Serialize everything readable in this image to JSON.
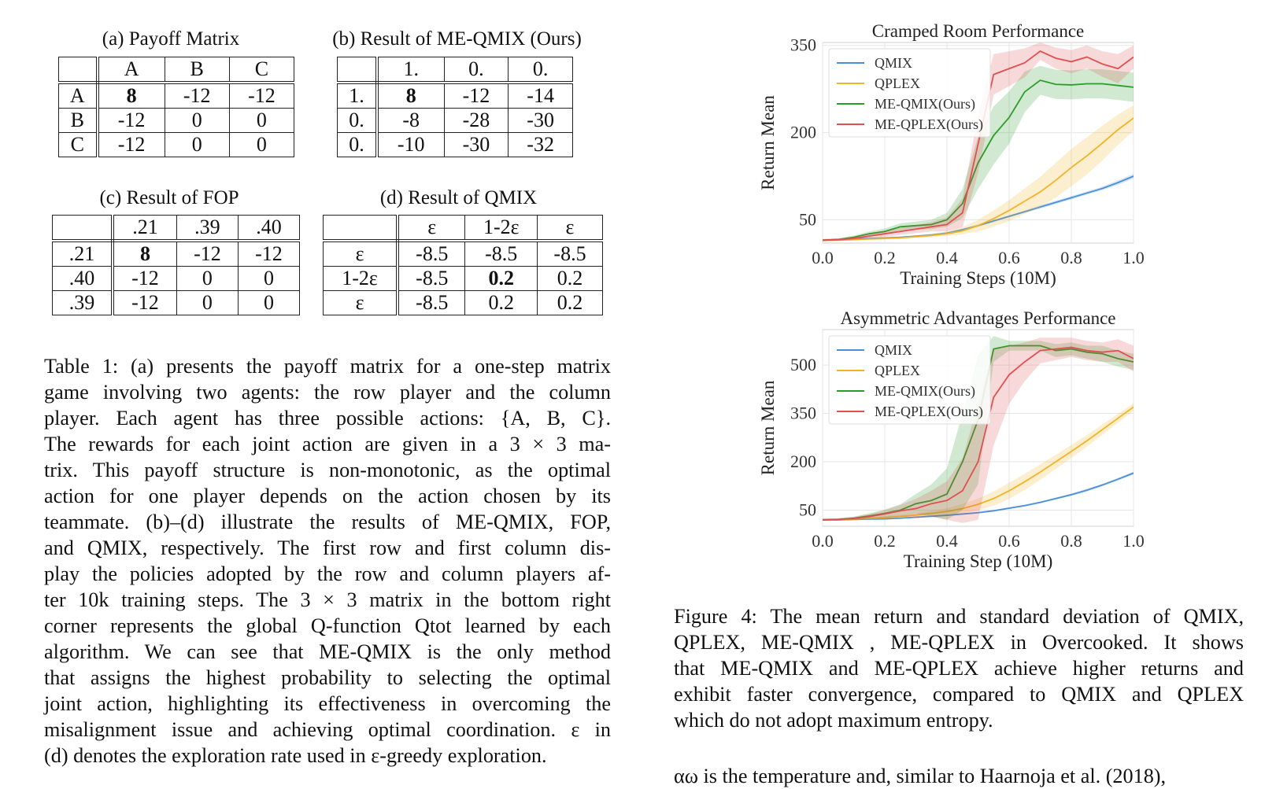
{
  "tables": {
    "a": {
      "title": "(a) Payoff Matrix",
      "cols": [
        "A",
        "B",
        "C"
      ],
      "rows": [
        {
          "h": "A",
          "v": [
            "8",
            "-12",
            "-12"
          ]
        },
        {
          "h": "B",
          "v": [
            "-12",
            "0",
            "0"
          ]
        },
        {
          "h": "C",
          "v": [
            "-12",
            "0",
            "0"
          ]
        }
      ]
    },
    "b": {
      "title": "(b) Result of ME-QMIX (Ours)",
      "cols": [
        "1.",
        "0.",
        "0."
      ],
      "rows": [
        {
          "h": "1.",
          "v": [
            "8",
            "-12",
            "-14"
          ]
        },
        {
          "h": "0.",
          "v": [
            "-8",
            "-28",
            "-30"
          ]
        },
        {
          "h": "0.",
          "v": [
            "-10",
            "-30",
            "-32"
          ]
        }
      ]
    },
    "c": {
      "title": "(c) Result of FOP",
      "cols": [
        ".21",
        ".39",
        ".40"
      ],
      "rows": [
        {
          "h": ".21",
          "v": [
            "8",
            "-12",
            "-12"
          ]
        },
        {
          "h": ".40",
          "v": [
            "-12",
            "0",
            "0"
          ]
        },
        {
          "h": ".39",
          "v": [
            "-12",
            "0",
            "0"
          ]
        }
      ]
    },
    "d": {
      "title": "(d) Result of QMIX",
      "cols": [
        "ε",
        "1-2ε",
        "ε"
      ],
      "rows": [
        {
          "h": "ε",
          "v": [
            "-8.5",
            "-8.5",
            "-8.5"
          ]
        },
        {
          "h": "1-2ε",
          "v": [
            "-8.5",
            "0.2",
            "0.2"
          ]
        },
        {
          "h": "ε",
          "v": [
            "-8.5",
            "0.2",
            "0.2"
          ]
        }
      ]
    }
  },
  "table_caption": [
    "Table 1: (a) presents the payoff matrix for a one-step matrix",
    "game involving two agents: the row player and the column",
    "player. Each agent has three possible actions: {A, B, C}.",
    "The rewards for each joint action are given in a 3 × 3 ma-",
    "trix. This payoff structure is non-monotonic, as the optimal",
    "action for one player depends on the action chosen by its",
    "teammate. (b)–(d) illustrate the results of ME-QMIX, FOP,",
    "and QMIX, respectively. The first row and first column dis-",
    "play the policies adopted by the row and column players af-",
    "ter 10k training steps. The 3 × 3 matrix in the bottom right",
    "corner represents the global Q-function Qtot learned by each",
    "algorithm. We can see that ME-QMIX is the only method",
    "that assigns the highest probability to selecting the optimal",
    "joint action, highlighting its effectiveness in overcoming the",
    "misalignment issue and achieving optimal coordination. ε in",
    "(d) denotes the exploration rate used in ε-greedy exploration."
  ],
  "figure_caption": [
    "Figure 4: The mean return and standard deviation of QMIX,",
    "QPLEX, ME-QMIX , ME-QPLEX in Overcooked. It shows",
    "that ME-QMIX and ME-QPLEX achieve higher returns and",
    "exhibit faster convergence, compared to QMIX and QPLEX",
    "which do not adopt maximum entropy."
  ],
  "body_text": "αω is the temperature and, similar to Haarnoja et al. (2018),",
  "colors": {
    "QMIX": "#4a90d9",
    "QPLEX": "#f0b429",
    "ME-QMIX(Ours)": "#2a9d2a",
    "ME-QPLEX(Ours)": "#e05050"
  },
  "chart_data": [
    {
      "type": "line",
      "title": "Cramped Room Performance",
      "xlabel": "Training Steps (10M)",
      "ylabel": "Return Mean",
      "xlim": [
        0,
        1.0
      ],
      "ylim": [
        10,
        355
      ],
      "xticks": [
        "0.0",
        "0.2",
        "0.4",
        "0.6",
        "0.8",
        "1.0"
      ],
      "xtick_values": [
        0,
        0.2,
        0.4,
        0.6,
        0.8,
        1.0
      ],
      "yticks": [
        "50",
        "200",
        "350"
      ],
      "ytick_values": [
        50,
        200,
        350
      ],
      "legend": "top-left",
      "grid": true,
      "x": [
        0,
        0.05,
        0.1,
        0.15,
        0.2,
        0.25,
        0.3,
        0.35,
        0.4,
        0.45,
        0.5,
        0.55,
        0.6,
        0.65,
        0.7,
        0.75,
        0.8,
        0.85,
        0.9,
        0.95,
        1.0
      ],
      "series": [
        {
          "name": "QMIX",
          "values": [
            15,
            16,
            17,
            18,
            19,
            20,
            22,
            24,
            27,
            33,
            40,
            48,
            56,
            64,
            72,
            80,
            88,
            96,
            104,
            114,
            125
          ],
          "std": [
            1,
            1,
            1,
            1,
            1,
            1,
            1,
            1,
            2,
            2,
            2,
            2,
            2,
            2,
            3,
            3,
            3,
            3,
            3,
            4,
            4
          ]
        },
        {
          "name": "QPLEX",
          "values": [
            15,
            15,
            16,
            17,
            18,
            19,
            21,
            23,
            26,
            31,
            40,
            52,
            66,
            82,
            98,
            118,
            140,
            160,
            182,
            205,
            225
          ],
          "std": [
            1,
            1,
            1,
            1,
            2,
            2,
            2,
            3,
            4,
            6,
            10,
            14,
            18,
            22,
            26,
            30,
            32,
            32,
            30,
            26,
            22
          ]
        },
        {
          "name": "ME-QMIX(Ours)",
          "values": [
            15,
            16,
            20,
            26,
            30,
            38,
            40,
            42,
            50,
            78,
            148,
            195,
            226,
            270,
            290,
            283,
            282,
            284,
            284,
            281,
            278
          ],
          "std": [
            2,
            2,
            3,
            4,
            5,
            6,
            7,
            8,
            12,
            25,
            45,
            50,
            45,
            35,
            25,
            25,
            25,
            25,
            25,
            25,
            25
          ]
        },
        {
          "name": "ME-QPLEX(Ours)",
          "values": [
            15,
            16,
            18,
            22,
            26,
            30,
            34,
            38,
            42,
            62,
            180,
            300,
            310,
            320,
            340,
            328,
            322,
            330,
            318,
            310,
            330
          ],
          "std": [
            2,
            2,
            3,
            4,
            5,
            6,
            7,
            8,
            12,
            25,
            50,
            35,
            30,
            25,
            15,
            18,
            20,
            20,
            22,
            25,
            20
          ]
        }
      ]
    },
    {
      "type": "line",
      "title": "Asymmetric Advantages Performance",
      "xlabel": "Training Step (10M)",
      "ylabel": "Return Mean",
      "xlim": [
        0,
        1.0
      ],
      "ylim": [
        0,
        610
      ],
      "xticks": [
        "0.0",
        "0.2",
        "0.4",
        "0.6",
        "0.8",
        "1.0"
      ],
      "xtick_values": [
        0,
        0.2,
        0.4,
        0.6,
        0.8,
        1.0
      ],
      "yticks": [
        "50",
        "200",
        "350",
        "500"
      ],
      "ytick_values": [
        50,
        200,
        350,
        500
      ],
      "legend": "top-left",
      "grid": true,
      "x": [
        0,
        0.05,
        0.1,
        0.15,
        0.2,
        0.25,
        0.3,
        0.35,
        0.4,
        0.45,
        0.5,
        0.55,
        0.6,
        0.65,
        0.7,
        0.75,
        0.8,
        0.85,
        0.9,
        0.95,
        1.0
      ],
      "series": [
        {
          "name": "QMIX",
          "values": [
            20,
            20,
            21,
            22,
            23,
            25,
            28,
            31,
            34,
            38,
            42,
            48,
            56,
            64,
            74,
            86,
            98,
            112,
            128,
            146,
            165
          ],
          "std": [
            1,
            1,
            1,
            1,
            1,
            1,
            2,
            2,
            2,
            2,
            2,
            3,
            3,
            3,
            3,
            3,
            4,
            4,
            4,
            4,
            5
          ]
        },
        {
          "name": "QPLEX",
          "values": [
            20,
            20,
            22,
            24,
            27,
            30,
            35,
            40,
            46,
            55,
            68,
            86,
            110,
            138,
            168,
            200,
            232,
            265,
            300,
            335,
            370
          ],
          "std": [
            1,
            1,
            2,
            3,
            4,
            5,
            6,
            8,
            10,
            14,
            18,
            22,
            25,
            25,
            24,
            22,
            20,
            18,
            16,
            14,
            12
          ]
        },
        {
          "name": "ME-QMIX(Ours)",
          "values": [
            20,
            21,
            25,
            32,
            40,
            50,
            70,
            80,
            100,
            200,
            330,
            550,
            560,
            560,
            560,
            545,
            550,
            540,
            535,
            520,
            510
          ],
          "std": [
            3,
            4,
            5,
            8,
            12,
            18,
            30,
            50,
            80,
            150,
            200,
            40,
            15,
            15,
            15,
            20,
            20,
            20,
            25,
            25,
            25
          ]
        },
        {
          "name": "ME-QPLEX(Ours)",
          "values": [
            20,
            21,
            24,
            30,
            38,
            48,
            55,
            70,
            80,
            110,
            200,
            400,
            470,
            510,
            545,
            550,
            555,
            545,
            540,
            545,
            520
          ],
          "std": [
            3,
            4,
            5,
            8,
            12,
            18,
            30,
            40,
            60,
            100,
            180,
            150,
            90,
            60,
            40,
            35,
            30,
            30,
            30,
            35,
            40
          ]
        }
      ]
    }
  ]
}
